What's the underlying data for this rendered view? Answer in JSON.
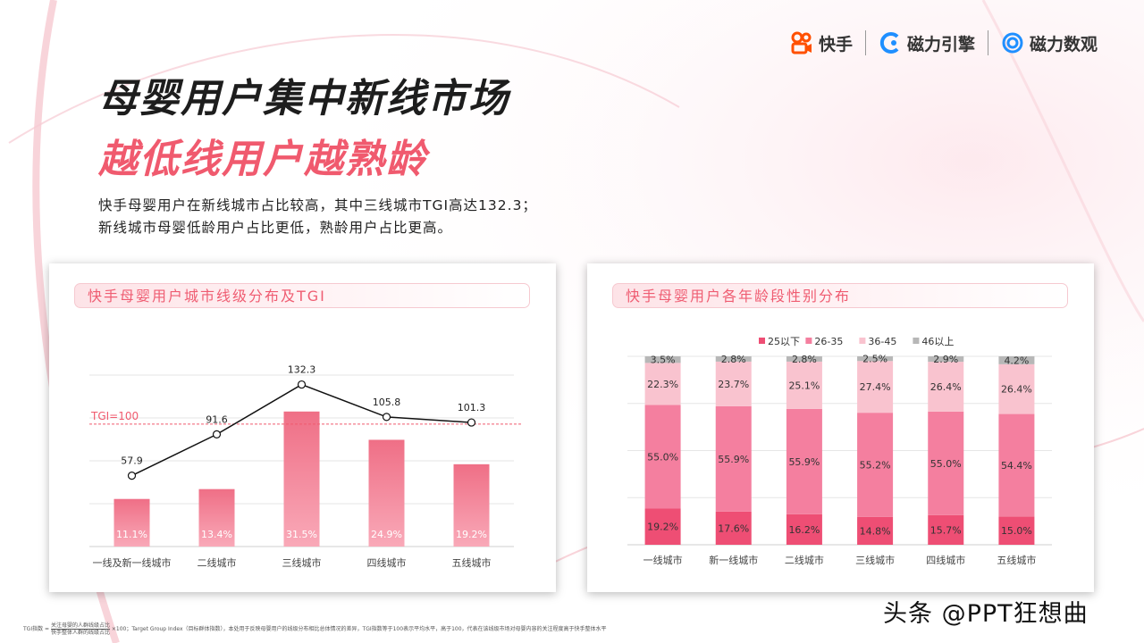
{
  "header": {
    "logos": [
      {
        "label": "快手",
        "icon": "kuaishou-icon",
        "color": "#ff5000"
      },
      {
        "label": "磁力引擎",
        "icon": "cili-engine-icon",
        "color": "#1f8fff"
      },
      {
        "label": "磁力数观",
        "icon": "cili-shuguan-icon",
        "color": "#1f8fff"
      }
    ]
  },
  "title": {
    "main": "母婴用户集中新线市场",
    "sub": "越低线用户越熟龄"
  },
  "summary": {
    "line1": "快手母婴用户在新线城市占比较高，其中三线城市TGI高达132.3；",
    "line2": "新线城市母婴低龄用户占比更低，熟龄用户占比更高。"
  },
  "colors": {
    "accent": "#f05a6e",
    "bar_top": "#ef6f86",
    "bar_bottom": "#f9a9b8",
    "seg_25": "#ee4e74",
    "seg_26_35": "#f47f9f",
    "seg_36_45": "#f9c3cf",
    "seg_46": "#b7b7b7"
  },
  "chart_data": [
    {
      "type": "bar",
      "title": "快手母婴用户城市线级分布及TGI",
      "categories": [
        "一线及新一线城市",
        "二线城市",
        "三线城市",
        "四线城市",
        "五线城市"
      ],
      "series": [
        {
          "values": [
            11.1,
            13.4,
            31.5,
            24.9,
            19.2
          ],
          "labels": [
            "11.1%",
            "13.4%",
            "31.5%",
            "24.9%",
            "19.2%"
          ]
        },
        {
          "type": "line",
          "values": [
            57.9,
            91.6,
            132.3,
            105.8,
            101.3
          ],
          "labels": [
            "57.9",
            "91.6",
            "132.3",
            "105.8",
            "101.3"
          ]
        }
      ],
      "bar_ylim": [
        0,
        40
      ],
      "line_ylim": [
        0,
        140
      ],
      "reference_line": {
        "value": 100,
        "label": "TGI=100"
      },
      "grid": true
    },
    {
      "type": "bar",
      "stacked": true,
      "title": "快手母婴用户各年龄段性别分布",
      "categories": [
        "一线城市",
        "新一线城市",
        "二线城市",
        "三线城市",
        "四线城市",
        "五线城市"
      ],
      "series": [
        {
          "name": "25以下",
          "values": [
            19.2,
            17.6,
            16.2,
            14.8,
            15.7,
            15.0
          ],
          "labels": [
            "19.2%",
            "17.6%",
            "16.2%",
            "14.8%",
            "15.7%",
            "15.0%"
          ]
        },
        {
          "name": "26-35",
          "values": [
            55.0,
            55.9,
            55.9,
            55.2,
            55.0,
            54.4
          ],
          "labels": [
            "55.0%",
            "55.9%",
            "55.9%",
            "55.2%",
            "55.0%",
            "54.4%"
          ]
        },
        {
          "name": "36-45",
          "values": [
            22.3,
            23.7,
            25.1,
            27.4,
            26.4,
            26.4
          ],
          "labels": [
            "22.3%",
            "23.7%",
            "25.1%",
            "27.4%",
            "26.4%",
            "26.4%"
          ]
        },
        {
          "name": "46以上",
          "values": [
            3.5,
            2.8,
            2.8,
            2.5,
            2.9,
            4.2
          ],
          "labels": [
            "3.5%",
            "2.8%",
            "2.8%",
            "2.5%",
            "2.9%",
            "4.2%"
          ]
        }
      ],
      "ylim": [
        0,
        100
      ],
      "legend": "top-center",
      "grid": true
    }
  ],
  "footnote": {
    "label": "TGI指数 =",
    "numerator": "关注母婴的人群线级占比",
    "denominator": "快手整体人群的线级占比",
    "text": "×100；Target Group Index（目标群体指数），本处用于反映母婴用户的线级分布相比总体情况的差异，TGI指数等于100表示平均水平，高于100，代表在该线级市场对母婴内容的关注程度高于快手整体水平"
  },
  "watermark": "头条 @PPT狂想曲"
}
